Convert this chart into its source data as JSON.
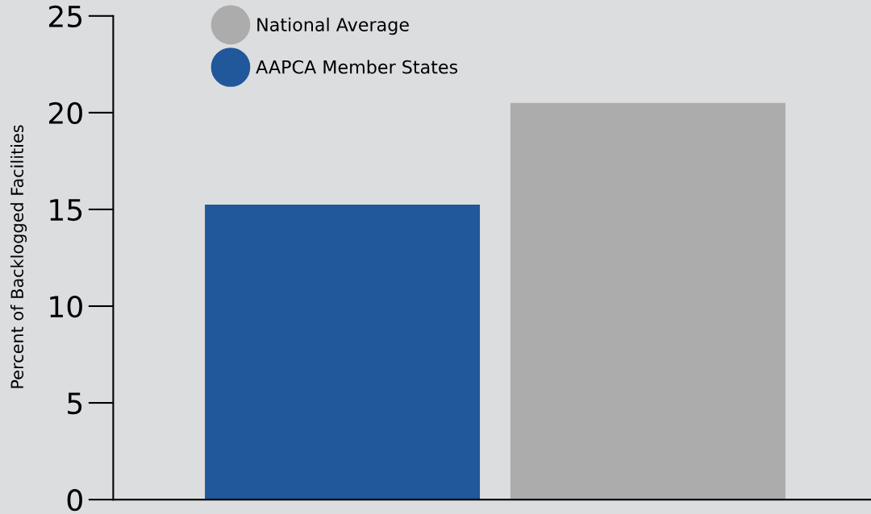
{
  "chart_data": {
    "type": "bar",
    "ylabel": "Percent of Backlogged Facilities",
    "categories": [
      null,
      null
    ],
    "series": [
      {
        "name": "National Average",
        "color": "#acacac",
        "values": [
          null,
          20.5
        ]
      },
      {
        "name": "AAPCA Member States",
        "color": "#21579b",
        "values": [
          15.25,
          null
        ]
      }
    ],
    "ylim": [
      0,
      25
    ],
    "yticks": [
      0,
      5,
      10,
      15,
      20,
      25
    ],
    "grid": false,
    "legend": "top left"
  }
}
